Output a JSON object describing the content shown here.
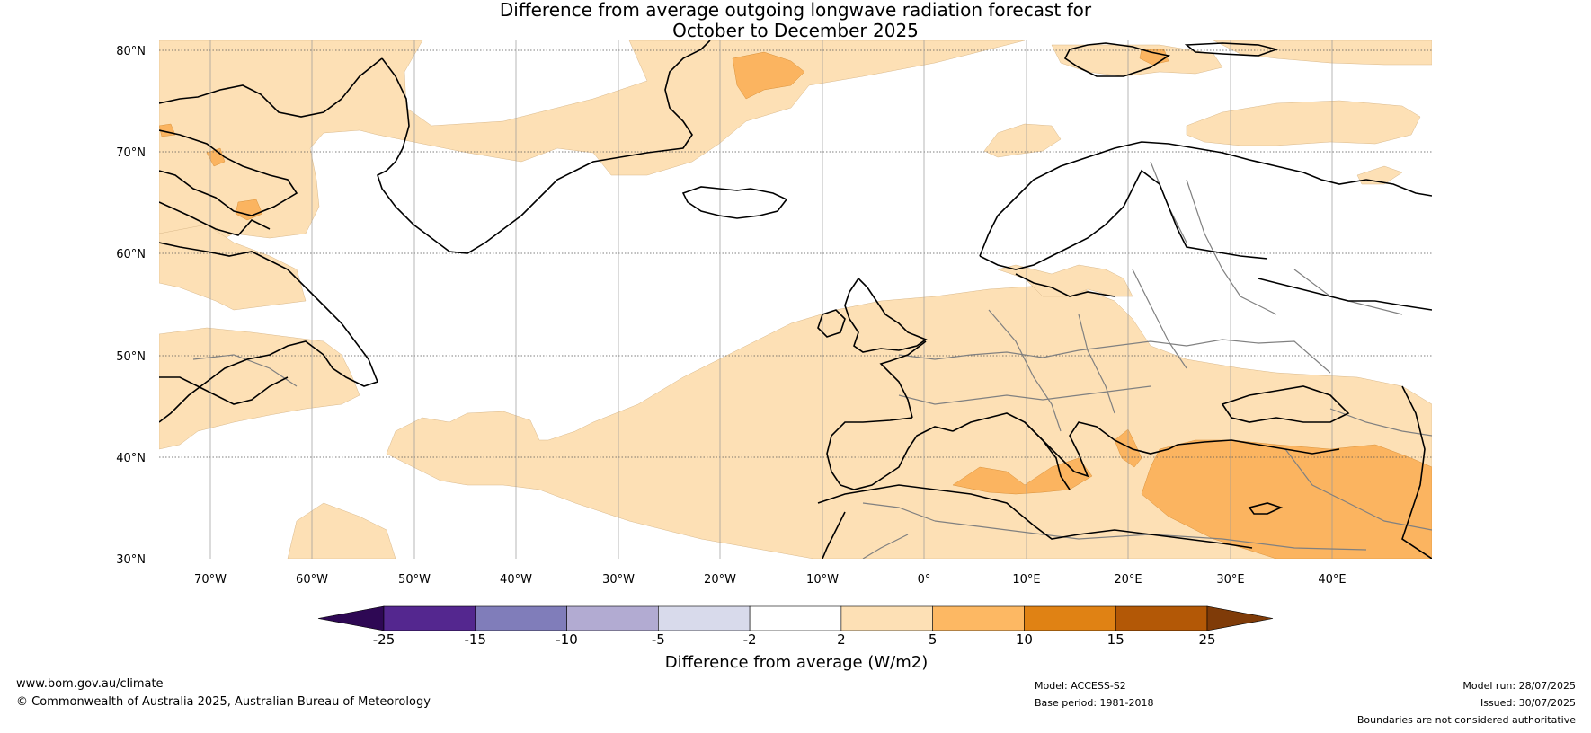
{
  "title_line1": "Difference from average outgoing longwave radiation forecast for",
  "title_line2": "October to December 2025",
  "map": {
    "lat_labels": [
      "80°N",
      "70°N",
      "60°N",
      "50°N",
      "40°N",
      "30°N"
    ],
    "lon_labels": [
      "70°W",
      "60°W",
      "50°W",
      "40°W",
      "30°W",
      "20°W",
      "10°W",
      "0°",
      "10°E",
      "20°E",
      "30°E",
      "40°E"
    ],
    "colors": {
      "anomaly_2_5": "#fde0b5",
      "anomaly_5_10": "#fbb460",
      "coast": "#000000",
      "border": "#808080"
    }
  },
  "colorbar": {
    "ticks": [
      "-25",
      "-15",
      "-10",
      "-5",
      "-2",
      "2",
      "5",
      "10",
      "15",
      "25"
    ],
    "colors": [
      "#2e0854",
      "#54278f",
      "#807dba",
      "#b2abd2",
      "#d8daeb",
      "#ffffff",
      "#fde0b5",
      "#fdb863",
      "#e08214",
      "#b35806",
      "#7f3b08"
    ],
    "label": "Difference from average (W/m2)"
  },
  "footer": {
    "website": "www.bom.gov.au/climate",
    "copyright": "© Commonwealth of Australia 2025, Australian Bureau of Meteorology",
    "model": "Model: ACCESS-S2",
    "base_period": "Base period: 1981-2018",
    "model_run": "Model run: 28/07/2025",
    "issued": "Issued: 30/07/2025",
    "disclaimer": "Boundaries are not considered authoritative"
  }
}
